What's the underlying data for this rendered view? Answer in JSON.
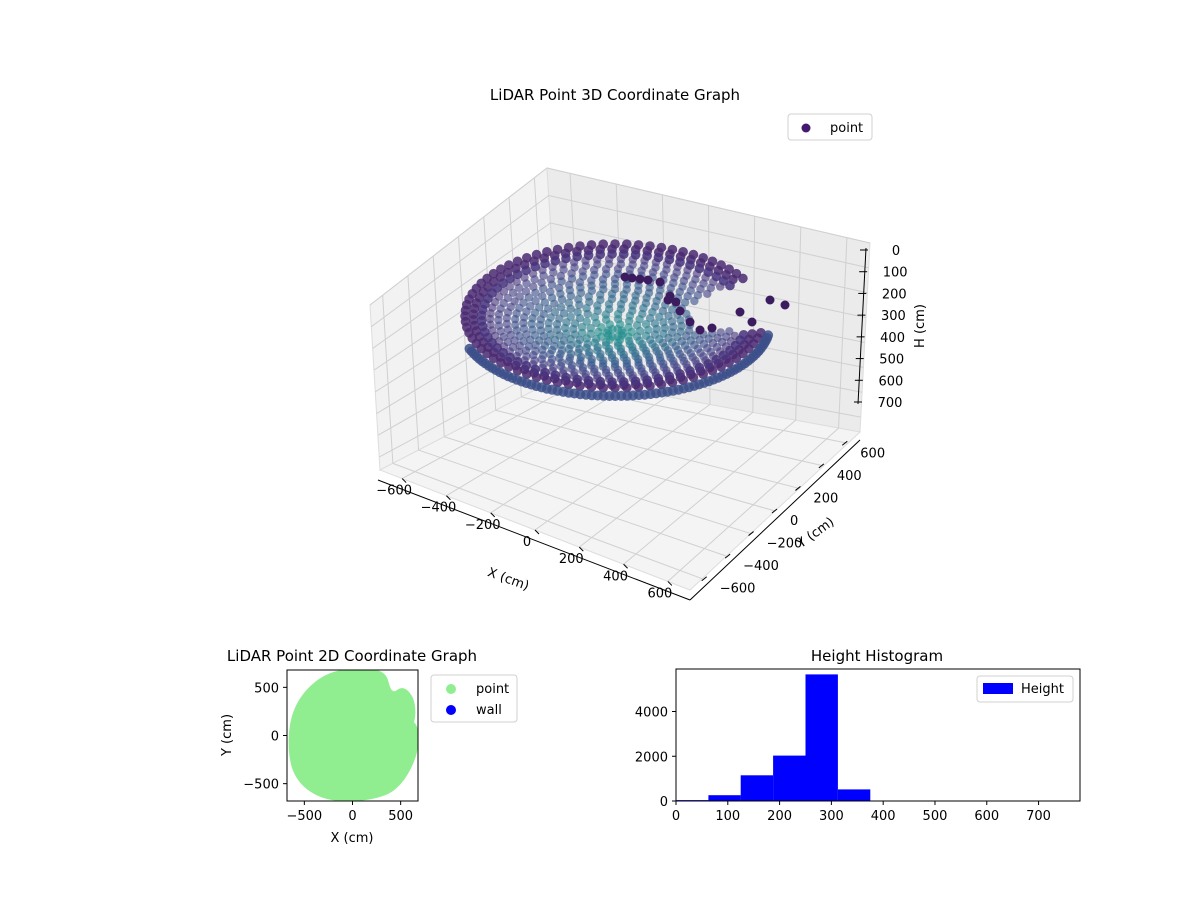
{
  "chart_data": [
    {
      "type": "scatter",
      "title": "LiDAR Point 3D Coordinate Graph",
      "xlabel": "X (cm)",
      "ylabel": "Y (cm)",
      "zlabel": "H (cm)",
      "xlim": [
        -700,
        700
      ],
      "ylim": [
        -700,
        700
      ],
      "zlim": [
        0,
        760
      ],
      "z_inverted": true,
      "x_ticks": [
        "−600",
        "−400",
        "−200",
        "0",
        "200",
        "400",
        "600"
      ],
      "y_ticks": [
        "−600",
        "−400",
        "−200",
        "0",
        "200",
        "400",
        "600"
      ],
      "z_ticks": [
        "0",
        "100",
        "200",
        "300",
        "400",
        "500",
        "600",
        "700"
      ],
      "series": [
        {
          "name": "point",
          "color": "#3b2a6b",
          "colormap": "viridis"
        }
      ],
      "legend": {
        "placement": "top-right",
        "entries": [
          "point"
        ]
      },
      "grid": true
    },
    {
      "type": "scatter",
      "title": "LiDAR Point 2D Coordinate Graph",
      "xlabel": "X (cm)",
      "ylabel": "Y (cm)",
      "xlim": [
        -680,
        680
      ],
      "ylim": [
        -680,
        680
      ],
      "x_ticks": [
        "−500",
        "0",
        "500"
      ],
      "y_ticks": [
        "500",
        "0",
        "−500"
      ],
      "series": [
        {
          "name": "point",
          "color": "#90ee90"
        },
        {
          "name": "wall",
          "color": "#0000ff"
        }
      ],
      "legend": {
        "placement": "outside-right",
        "entries": [
          "point",
          "wall"
        ]
      },
      "grid": false
    },
    {
      "type": "bar",
      "title": "Height Histogram",
      "xlabel": "",
      "ylabel": "",
      "xlim": [
        0,
        780
      ],
      "ylim": [
        0,
        5900
      ],
      "x_ticks": [
        "0",
        "100",
        "200",
        "300",
        "400",
        "500",
        "600",
        "700"
      ],
      "y_ticks": [
        "0",
        "2000",
        "4000"
      ],
      "bin_width": 62.5,
      "bins": [
        {
          "x0": 0,
          "value": 40
        },
        {
          "x0": 62.5,
          "value": 260
        },
        {
          "x0": 125,
          "value": 1150
        },
        {
          "x0": 187.5,
          "value": 2030
        },
        {
          "x0": 250,
          "value": 5660
        },
        {
          "x0": 312.5,
          "value": 520
        },
        {
          "x0": 375,
          "value": 0
        },
        {
          "x0": 437.5,
          "value": 0
        },
        {
          "x0": 500,
          "value": 0
        },
        {
          "x0": 562.5,
          "value": 0
        },
        {
          "x0": 625,
          "value": 0
        },
        {
          "x0": 687.5,
          "value": 0
        }
      ],
      "series": [
        {
          "name": "Height",
          "color": "#0000ff"
        }
      ],
      "legend": {
        "placement": "top-right",
        "entries": [
          "Height"
        ]
      },
      "grid": false
    }
  ]
}
